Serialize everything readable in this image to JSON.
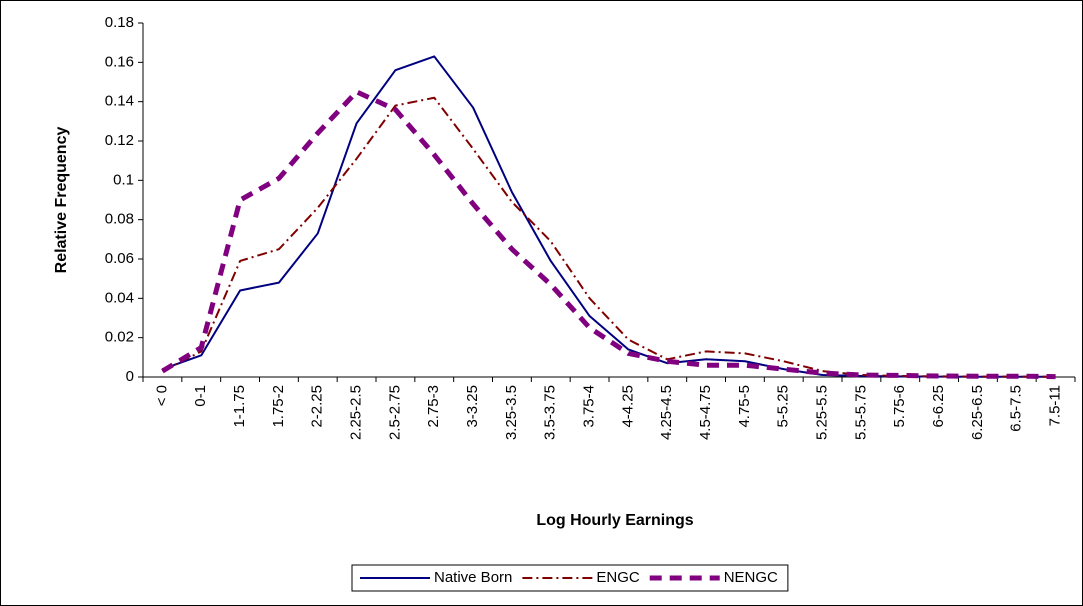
{
  "chart_data": {
    "type": "line",
    "xlabel": "Log Hourly Earnings",
    "ylabel": "Relative Frequency",
    "categories": [
      "< 0",
      "0-1",
      "1-1.75",
      "1.75-2",
      "2-2.25",
      "2.25-2.5",
      "2.5-2.75",
      "2.75-3",
      "3-3.25",
      "3.25-3.5",
      "3.5-3.75",
      "3.75-4",
      "4-4.25",
      "4.25-4.5",
      "4.5-4.75",
      "4.75-5",
      "5-5.25",
      "5.25-5.5",
      "5.5-5.75",
      "5.75-6",
      "6-6.25",
      "6.25-6.5",
      "6.5-7.5",
      "7.5-11"
    ],
    "series": [
      {
        "name": "Native Born",
        "color": "#000080",
        "line_style": "solid",
        "values": [
          0.004,
          0.011,
          0.044,
          0.048,
          0.073,
          0.129,
          0.156,
          0.163,
          0.137,
          0.094,
          0.059,
          0.031,
          0.014,
          0.007,
          0.009,
          0.008,
          0.004,
          0.001,
          0.0005,
          0.0003,
          0.0002,
          0.0001,
          0.0001,
          0.0001
        ]
      },
      {
        "name": "ENGC",
        "color": "#800000",
        "line_style": "dashdot",
        "values": [
          0.003,
          0.013,
          0.059,
          0.065,
          0.086,
          0.111,
          0.138,
          0.142,
          0.116,
          0.089,
          0.069,
          0.04,
          0.019,
          0.009,
          0.013,
          0.012,
          0.008,
          0.003,
          0.001,
          0.0005,
          0.0003,
          0.0002,
          0.0002,
          0.0001
        ]
      },
      {
        "name": "NENGC",
        "color": "#800080",
        "line_style": "dashed",
        "values": [
          0.003,
          0.015,
          0.09,
          0.101,
          0.124,
          0.145,
          0.136,
          0.113,
          0.088,
          0.065,
          0.047,
          0.025,
          0.012,
          0.008,
          0.006,
          0.006,
          0.004,
          0.002,
          0.001,
          0.0008,
          0.0005,
          0.0004,
          0.0004,
          0.0002
        ]
      }
    ],
    "ylim": [
      0,
      0.18
    ],
    "yticks": [
      0,
      0.02,
      0.04,
      0.06,
      0.08,
      0.1,
      0.12,
      0.14,
      0.16,
      0.18
    ],
    "grid": false,
    "legend": "bottom"
  }
}
